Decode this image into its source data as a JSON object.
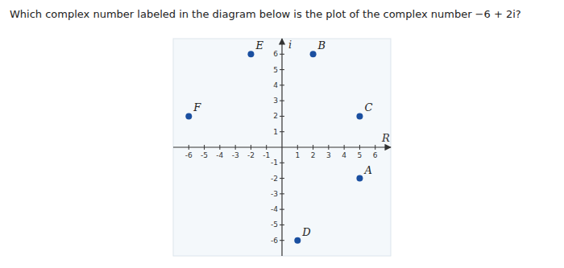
{
  "chart_data": {
    "type": "scatter",
    "title": "Which complex number labeled in the diagram below is the plot of the complex number −6 + 2i?",
    "x": [
      -2,
      2,
      -6,
      5,
      5,
      1
    ],
    "values": [
      6,
      6,
      2,
      2,
      -2,
      -6
    ],
    "labels": [
      "E",
      "B",
      "F",
      "C",
      "A",
      "D"
    ],
    "color": "#1a4fa0",
    "xlim": [
      -7,
      7
    ],
    "ylim": [
      -7,
      7
    ],
    "xticks": [
      -6,
      -5,
      -4,
      -3,
      -2,
      -1,
      1,
      2,
      3,
      4,
      5,
      6
    ],
    "yticks": [
      -6,
      -5,
      -4,
      -3,
      -2,
      -1,
      1,
      2,
      3,
      4,
      5,
      6
    ],
    "x_label": "R",
    "y_label": "i",
    "grid": false
  }
}
